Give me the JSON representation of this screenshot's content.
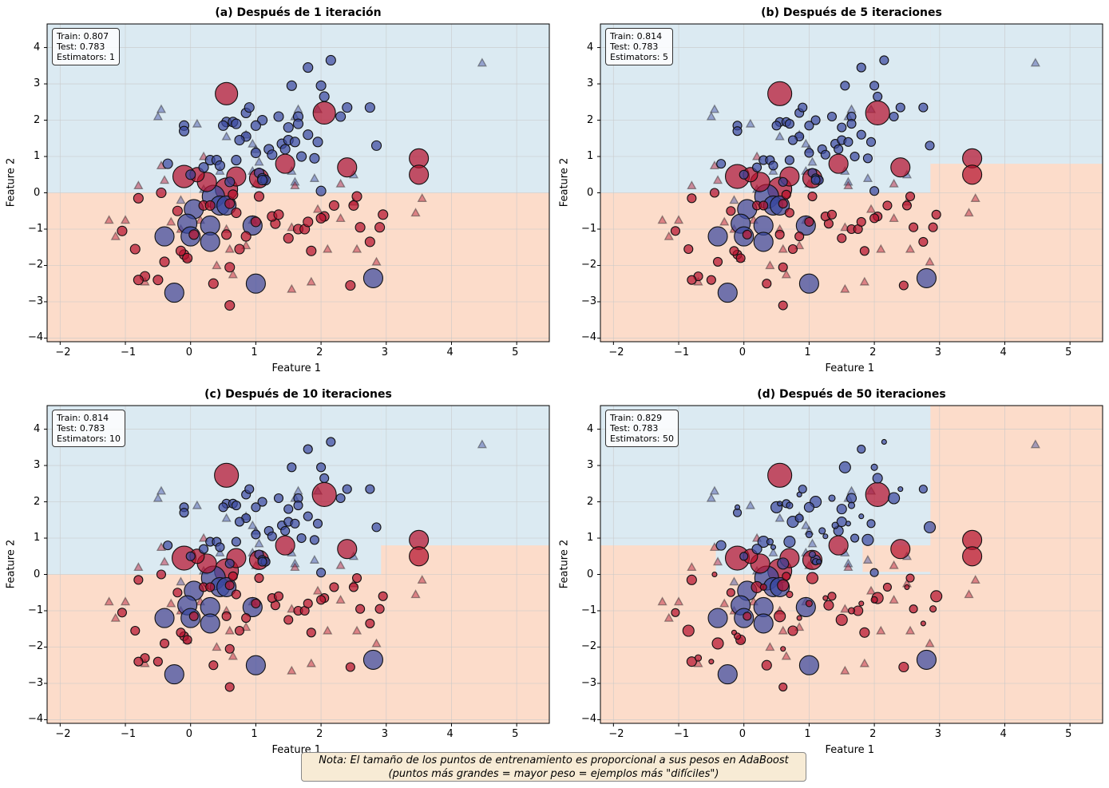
{
  "colors": {
    "class0_region": "#dbeaf2",
    "class1_region": "#fcdcca",
    "class0_point": "#3b4aa0",
    "class1_point": "#b5122e",
    "grid": "#c8c8c8"
  },
  "note": {
    "line1": "Nota: El tamaño de los puntos de entrenamiento es proporcional a sus pesos en AdaBoost",
    "line2": "(puntos más grandes = mayor peso = ejemplos más \"difíciles\")"
  },
  "chart_data": [
    {
      "type": "scatter",
      "title": "(a) Después de 1 iteración",
      "xlabel": "Feature 1",
      "ylabel": "Feature 2",
      "xlim": [
        -2.2,
        5.5
      ],
      "ylim": [
        -4.1,
        4.65
      ],
      "xticks": [
        "−2",
        "−1",
        "0",
        "1",
        "2",
        "3",
        "4",
        "5"
      ],
      "yticks": [
        "−4",
        "−3",
        "−2",
        "−1",
        "0",
        "1",
        "2",
        "3",
        "4"
      ],
      "grid": true,
      "info": {
        "train": "Train: 0.807",
        "test": "Test: 0.783",
        "estimators": "Estimators: 1"
      },
      "regions_class0": [
        [
          -2.2,
          0,
          5.5,
          4.65
        ]
      ],
      "weight_mode": "a"
    },
    {
      "type": "scatter",
      "title": "(b) Después de 5 iteraciones",
      "xlabel": "Feature 1",
      "ylabel": "Feature 2",
      "xlim": [
        -2.2,
        5.5
      ],
      "ylim": [
        -4.1,
        4.65
      ],
      "xticks": [
        "−2",
        "−1",
        "0",
        "1",
        "2",
        "3",
        "4",
        "5"
      ],
      "yticks": [
        "−4",
        "−3",
        "−2",
        "−1",
        "0",
        "1",
        "2",
        "3",
        "4"
      ],
      "grid": true,
      "info": {
        "train": "Train: 0.814",
        "test": "Test: 0.783",
        "estimators": "Estimators: 5"
      },
      "regions_class0": [
        [
          -2.2,
          0,
          2.86,
          4.65
        ],
        [
          2.86,
          0.8,
          5.5,
          4.65
        ]
      ],
      "weight_mode": "b"
    },
    {
      "type": "scatter",
      "title": "(c) Después de 10 iteraciones",
      "xlabel": "Feature 1",
      "ylabel": "Feature 2",
      "xlim": [
        -2.2,
        5.5
      ],
      "ylim": [
        -4.1,
        4.65
      ],
      "xticks": [
        "−2",
        "−1",
        "0",
        "1",
        "2",
        "3",
        "4",
        "5"
      ],
      "yticks": [
        "−4",
        "−3",
        "−2",
        "−1",
        "0",
        "1",
        "2",
        "3",
        "4"
      ],
      "grid": true,
      "info": {
        "train": "Train: 0.814",
        "test": "Test: 0.783",
        "estimators": "Estimators: 10"
      },
      "regions_class0": [
        [
          -2.2,
          0,
          2.92,
          4.65
        ],
        [
          2.92,
          0.8,
          5.5,
          4.65
        ]
      ],
      "weight_mode": "b"
    },
    {
      "type": "scatter",
      "title": "(d) Después de 50 iteraciones",
      "xlabel": "Feature 1",
      "ylabel": "Feature 2",
      "xlim": [
        -2.2,
        5.5
      ],
      "ylim": [
        -4.1,
        4.65
      ],
      "xticks": [
        "−2",
        "−1",
        "0",
        "1",
        "2",
        "3",
        "4",
        "5"
      ],
      "yticks": [
        "−4",
        "−3",
        "−2",
        "−1",
        "0",
        "1",
        "2",
        "3",
        "4"
      ],
      "grid": true,
      "info": {
        "train": "Train: 0.829",
        "test": "Test: 0.783",
        "estimators": "Estimators: 50"
      },
      "regions_class0": [
        [
          -2.2,
          0.8,
          2.86,
          4.65
        ],
        [
          -0.43,
          0,
          1.82,
          0.8
        ],
        [
          1.82,
          0.8,
          2.86,
          0.8
        ],
        [
          1.82,
          0,
          2.86,
          0.07
        ]
      ],
      "weight_mode": "d"
    }
  ],
  "train_points": [
    [
      0.55,
      2.73,
      1,
      4
    ],
    [
      2.05,
      2.2,
      1,
      4
    ],
    [
      3.5,
      0.95,
      1,
      3
    ],
    [
      3.5,
      0.5,
      1,
      3
    ],
    [
      1.45,
      0.8,
      1,
      3
    ],
    [
      2.4,
      0.7,
      1,
      3
    ],
    [
      -0.1,
      0.45,
      1,
      4
    ],
    [
      0.25,
      0.3,
      1,
      3
    ],
    [
      0.7,
      0.45,
      1,
      3
    ],
    [
      0.55,
      0.1,
      1,
      4
    ],
    [
      1.05,
      0.4,
      1,
      3
    ],
    [
      0.1,
      0.5,
      1,
      2
    ],
    [
      0.35,
      -0.1,
      0,
      4
    ],
    [
      0.45,
      -0.35,
      0,
      3
    ],
    [
      0.05,
      -0.45,
      0,
      3
    ],
    [
      -0.05,
      -0.85,
      0,
      3
    ],
    [
      0.3,
      -0.9,
      0,
      3
    ],
    [
      0.0,
      -1.2,
      0,
      3
    ],
    [
      0.3,
      -1.35,
      0,
      3
    ],
    [
      -0.4,
      -1.2,
      0,
      3
    ],
    [
      0.95,
      -0.9,
      0,
      3
    ],
    [
      1.0,
      -2.5,
      0,
      3
    ],
    [
      -0.25,
      -2.75,
      0,
      3
    ],
    [
      2.8,
      -2.35,
      0,
      3
    ],
    [
      0.55,
      -0.35,
      0,
      3
    ],
    [
      2.15,
      3.65,
      0,
      1
    ],
    [
      1.8,
      3.45,
      0,
      1
    ],
    [
      1.55,
      2.95,
      0,
      1
    ],
    [
      2.0,
      2.95,
      0,
      1
    ],
    [
      2.05,
      2.65,
      0,
      1
    ],
    [
      2.4,
      2.35,
      0,
      1
    ],
    [
      2.75,
      2.35,
      0,
      1
    ],
    [
      2.3,
      2.1,
      0,
      1
    ],
    [
      1.35,
      2.1,
      0,
      1
    ],
    [
      1.65,
      2.1,
      0,
      1
    ],
    [
      0.85,
      2.2,
      0,
      1
    ],
    [
      0.9,
      2.35,
      0,
      1
    ],
    [
      1.1,
      2.0,
      0,
      1
    ],
    [
      1.65,
      1.9,
      0,
      1
    ],
    [
      1.5,
      1.8,
      0,
      1
    ],
    [
      0.55,
      1.95,
      0,
      1
    ],
    [
      0.65,
      1.95,
      0,
      1
    ],
    [
      0.5,
      1.85,
      0,
      1
    ],
    [
      0.7,
      1.9,
      0,
      1
    ],
    [
      1.0,
      1.85,
      0,
      1
    ],
    [
      1.8,
      1.6,
      0,
      1
    ],
    [
      0.85,
      1.55,
      0,
      1
    ],
    [
      0.75,
      1.45,
      0,
      1
    ],
    [
      1.4,
      1.35,
      0,
      1
    ],
    [
      1.5,
      1.45,
      0,
      1
    ],
    [
      1.6,
      1.4,
      0,
      1
    ],
    [
      1.95,
      1.4,
      0,
      1
    ],
    [
      2.85,
      1.3,
      0,
      1
    ],
    [
      1.2,
      1.2,
      0,
      1
    ],
    [
      1.45,
      1.2,
      0,
      1
    ],
    [
      1.25,
      1.05,
      0,
      1
    ],
    [
      1.7,
      1.0,
      0,
      1
    ],
    [
      1.9,
      0.95,
      0,
      1
    ],
    [
      1.0,
      1.1,
      0,
      1
    ],
    [
      -0.35,
      0.8,
      0,
      1
    ],
    [
      -0.1,
      1.85,
      0,
      1
    ],
    [
      -0.1,
      1.7,
      0,
      1
    ],
    [
      0.3,
      0.9,
      0,
      1
    ],
    [
      0.4,
      0.9,
      0,
      1
    ],
    [
      0.2,
      0.7,
      0,
      1
    ],
    [
      0.45,
      0.75,
      0,
      1
    ],
    [
      0.0,
      0.5,
      0,
      1
    ],
    [
      0.7,
      0.9,
      0,
      1
    ],
    [
      1.05,
      0.55,
      0,
      1
    ],
    [
      1.1,
      0.4,
      0,
      1
    ],
    [
      1.15,
      0.35,
      0,
      1
    ],
    [
      2.0,
      0.05,
      0,
      1
    ],
    [
      0.6,
      0.3,
      0,
      1
    ],
    [
      1.1,
      0.35,
      0,
      1
    ],
    [
      -0.8,
      -0.15,
      1,
      1
    ],
    [
      -0.45,
      0.0,
      1,
      1
    ],
    [
      -1.05,
      -1.05,
      1,
      1
    ],
    [
      -0.85,
      -1.55,
      1,
      1
    ],
    [
      -0.7,
      -2.3,
      1,
      1
    ],
    [
      -0.8,
      -2.4,
      1,
      1
    ],
    [
      -0.5,
      -2.4,
      1,
      1
    ],
    [
      -0.2,
      -0.5,
      1,
      1
    ],
    [
      -0.4,
      -1.9,
      1,
      1
    ],
    [
      -0.1,
      -1.7,
      1,
      1
    ],
    [
      -0.05,
      -1.8,
      1,
      1
    ],
    [
      -0.15,
      -1.6,
      1,
      1
    ],
    [
      0.05,
      -1.15,
      1,
      1
    ],
    [
      0.2,
      -0.35,
      1,
      1
    ],
    [
      0.3,
      -0.35,
      1,
      1
    ],
    [
      0.35,
      -2.5,
      1,
      1
    ],
    [
      0.6,
      -2.05,
      1,
      1
    ],
    [
      0.6,
      -3.1,
      1,
      1
    ],
    [
      0.55,
      -1.15,
      1,
      1
    ],
    [
      0.7,
      -0.55,
      1,
      1
    ],
    [
      0.75,
      -1.55,
      1,
      1
    ],
    [
      0.85,
      -1.2,
      1,
      1
    ],
    [
      0.65,
      -0.05,
      1,
      1
    ],
    [
      0.6,
      -0.3,
      1,
      1
    ],
    [
      1.0,
      -0.8,
      1,
      1
    ],
    [
      1.3,
      -0.85,
      1,
      1
    ],
    [
      1.25,
      -0.65,
      1,
      1
    ],
    [
      1.35,
      -0.6,
      1,
      1
    ],
    [
      1.5,
      -1.25,
      1,
      1
    ],
    [
      1.65,
      -1.0,
      1,
      1
    ],
    [
      1.75,
      -1.0,
      1,
      1
    ],
    [
      1.8,
      -0.8,
      1,
      1
    ],
    [
      2.2,
      -0.35,
      1,
      1
    ],
    [
      2.05,
      -0.65,
      1,
      1
    ],
    [
      2.0,
      -0.7,
      1,
      1
    ],
    [
      1.85,
      -1.6,
      1,
      1
    ],
    [
      2.75,
      -1.35,
      1,
      1
    ],
    [
      2.6,
      -0.95,
      1,
      1
    ],
    [
      2.95,
      -0.6,
      1,
      1
    ],
    [
      2.9,
      -0.95,
      1,
      1
    ],
    [
      2.45,
      -2.55,
      1,
      1
    ],
    [
      2.5,
      -0.35,
      1,
      1
    ],
    [
      2.55,
      -0.1,
      1,
      1
    ],
    [
      1.05,
      -0.1,
      1,
      1
    ]
  ],
  "test_points": [
    [
      4.47,
      3.58,
      0
    ],
    [
      -0.45,
      2.3,
      0
    ],
    [
      -0.5,
      2.1,
      0
    ],
    [
      0.1,
      1.9,
      0
    ],
    [
      0.55,
      1.55,
      0
    ],
    [
      0.85,
      1.6,
      0
    ],
    [
      0.95,
      1.35,
      0
    ],
    [
      1.0,
      1.2,
      0
    ],
    [
      1.05,
      0.85,
      0
    ],
    [
      1.65,
      2.3,
      0
    ],
    [
      1.6,
      2.1,
      0
    ],
    [
      1.55,
      0.6,
      0
    ],
    [
      0.95,
      0.6,
      0
    ],
    [
      1.6,
      0.3,
      0
    ],
    [
      0.5,
      -0.2,
      0
    ],
    [
      2.5,
      0.5,
      0
    ],
    [
      1.95,
      2.3,
      0
    ],
    [
      1.9,
      0.4,
      0
    ],
    [
      0.45,
      0.6,
      0
    ],
    [
      -0.15,
      -0.2,
      0
    ],
    [
      0.2,
      0.1,
      0
    ],
    [
      -0.8,
      0.2,
      1
    ],
    [
      -0.45,
      0.75,
      1
    ],
    [
      -0.4,
      0.35,
      1
    ],
    [
      0.2,
      1.0,
      1
    ],
    [
      1.0,
      0.25,
      1
    ],
    [
      1.6,
      0.2,
      1
    ],
    [
      2.3,
      0.25,
      1
    ],
    [
      3.55,
      -0.15,
      1
    ],
    [
      3.45,
      -0.55,
      1
    ],
    [
      -1.25,
      -0.75,
      1
    ],
    [
      -1.0,
      -0.75,
      1
    ],
    [
      -1.15,
      -1.2,
      1
    ],
    [
      -0.7,
      -2.45,
      1
    ],
    [
      -0.3,
      -0.8,
      1
    ],
    [
      -0.15,
      -1.0,
      1
    ],
    [
      0.15,
      -0.75,
      1
    ],
    [
      0.55,
      -1.0,
      1
    ],
    [
      0.6,
      -1.55,
      1
    ],
    [
      0.65,
      -2.25,
      1
    ],
    [
      1.55,
      -2.65,
      1
    ],
    [
      1.85,
      -2.45,
      1
    ],
    [
      2.1,
      -1.55,
      1
    ],
    [
      2.55,
      -1.55,
      1
    ],
    [
      2.85,
      -1.9,
      1
    ],
    [
      2.3,
      -0.7,
      1
    ],
    [
      1.55,
      -0.95,
      1
    ],
    [
      1.95,
      -0.45,
      1
    ],
    [
      0.85,
      -1.45,
      1
    ],
    [
      2.5,
      -0.25,
      1
    ],
    [
      0.95,
      -0.75,
      1
    ],
    [
      -0.05,
      -1.8,
      1
    ],
    [
      0.4,
      -2.0,
      1
    ]
  ]
}
